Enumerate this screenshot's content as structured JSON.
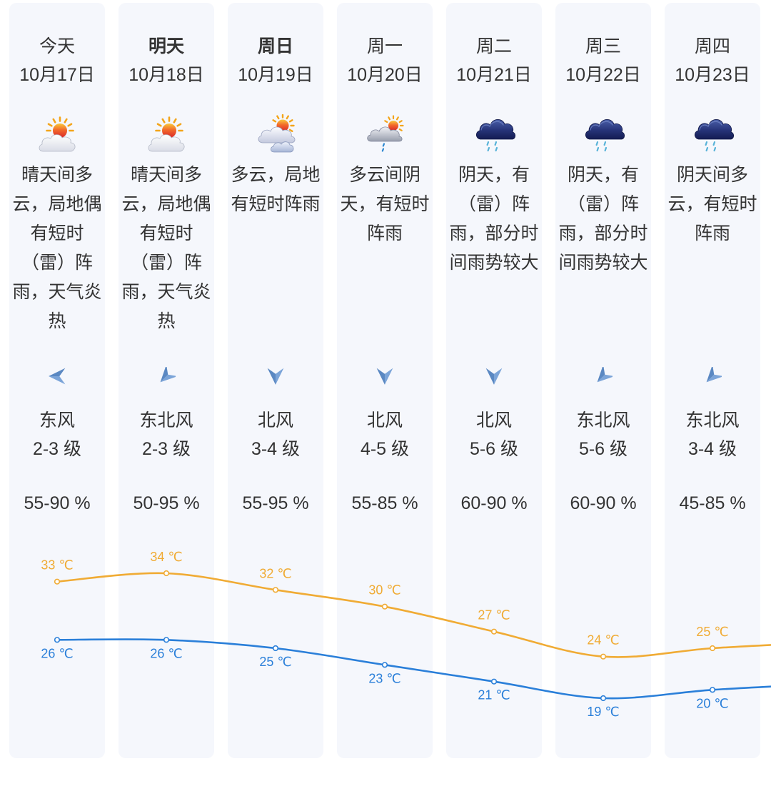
{
  "days": [
    {
      "day": "今天",
      "date": "10月17日",
      "emphasized": false,
      "weather_icon": "sun-behind-cloud-icon",
      "description": "晴天间多云，局地偶有短时（雷）阵雨，天气炎热",
      "wind_icon": "arrow-west-icon",
      "wind_dir": "东风",
      "wind_level": "2-3 级",
      "humidity": "55-90 %"
    },
    {
      "day": "明天",
      "date": "10月18日",
      "emphasized": true,
      "weather_icon": "sun-behind-cloud-icon",
      "description": "晴天间多云，局地偶有短时（雷）阵雨，天气炎热",
      "wind_icon": "arrow-southwest-icon",
      "wind_dir": "东北风",
      "wind_level": "2-3 级",
      "humidity": "50-95 %"
    },
    {
      "day": "周日",
      "date": "10月19日",
      "emphasized": true,
      "weather_icon": "sun-behind-clouds-icon",
      "description": "多云，局地有短时阵雨",
      "wind_icon": "arrow-south-icon",
      "wind_dir": "北风",
      "wind_level": "3-4 级",
      "humidity": "55-95 %"
    },
    {
      "day": "周一",
      "date": "10月20日",
      "emphasized": false,
      "weather_icon": "cloud-sun-rain-icon",
      "description": "多云间阴天，有短时阵雨",
      "wind_icon": "arrow-south-icon",
      "wind_dir": "北风",
      "wind_level": "4-5 级",
      "humidity": "55-85 %"
    },
    {
      "day": "周二",
      "date": "10月21日",
      "emphasized": false,
      "weather_icon": "dark-cloud-rain-icon",
      "description": "阴天，有（雷）阵雨，部分时间雨势较大",
      "wind_icon": "arrow-south-icon",
      "wind_dir": "北风",
      "wind_level": "5-6 级",
      "humidity": "60-90 %"
    },
    {
      "day": "周三",
      "date": "10月22日",
      "emphasized": false,
      "weather_icon": "dark-cloud-rain-icon",
      "description": "阴天，有（雷）阵雨，部分时间雨势较大",
      "wind_icon": "arrow-southwest-icon",
      "wind_dir": "东北风",
      "wind_level": "5-6 级",
      "humidity": "60-90 %"
    },
    {
      "day": "周四",
      "date": "10月23日",
      "emphasized": false,
      "weather_icon": "dark-cloud-rain-icon",
      "description": "阴天间多云，有短时阵雨",
      "wind_icon": "arrow-southwest-icon",
      "wind_dir": "东北风",
      "wind_level": "3-4 级",
      "humidity": "45-85 %"
    }
  ],
  "chart_data": {
    "type": "line",
    "categories": [
      "10月17日",
      "10月18日",
      "10月19日",
      "10月20日",
      "10月21日",
      "10月22日",
      "10月23日"
    ],
    "unit": "℃",
    "series": [
      {
        "values": [
          33,
          34,
          32,
          30,
          27,
          24,
          25
        ],
        "color": "#f0ab34"
      },
      {
        "values": [
          26,
          26,
          25,
          23,
          21,
          19,
          20
        ],
        "color": "#2a7fd9"
      }
    ]
  },
  "colors": {
    "card_background": "#f5f7fc",
    "wind_arrow": "#5a88c2",
    "text": "#333333"
  }
}
